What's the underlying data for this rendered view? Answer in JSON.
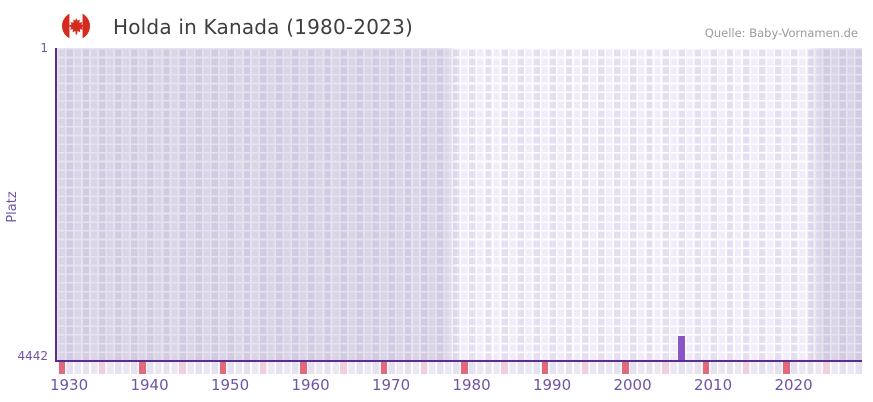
{
  "header": {
    "title": "Holda in Kanada (1980-2023)",
    "source": "Quelle: Baby-Vornamen.de",
    "flag_icon": "canada-flag-icon"
  },
  "chart_data": {
    "type": "bar",
    "title": "Holda in Kanada (1980-2023)",
    "xlabel": "",
    "ylabel": "Platz",
    "y_axis": {
      "top_label": "1",
      "bottom_label": "4442",
      "min": 1,
      "max": 4442,
      "inverted": true
    },
    "x_axis": {
      "start_year": 1929,
      "end_year": 2029,
      "tick_years": [
        1930,
        1940,
        1950,
        1960,
        1970,
        1980,
        1990,
        2000,
        2010,
        2020
      ],
      "major_mark_years": [
        1929,
        1939,
        1949,
        1959,
        1969,
        1979,
        1989,
        1999,
        2009,
        2019,
        2029
      ],
      "minor_mark_years": [
        1934,
        1944,
        1954,
        1964,
        1974,
        1984,
        1994,
        2004,
        2014,
        2024
      ]
    },
    "light_band_years": {
      "from": 1979,
      "to": 2022
    },
    "points": [
      {
        "year": 2006,
        "rank": 4096
      }
    ],
    "grid": "checkerboard",
    "legend": "none",
    "colors": {
      "bar": "#8b55c7",
      "axis_line": "#5a2d91",
      "major_mark": "#e2697b",
      "minor_mark": "#f0cfdd",
      "tick_label": "#6f55a5",
      "outside_band_tint": "rgba(148,138,178,0.24)",
      "flag_red": "#d52b1e",
      "title_text": "#3e3e3e",
      "source_text": "#9b9b9b"
    }
  }
}
